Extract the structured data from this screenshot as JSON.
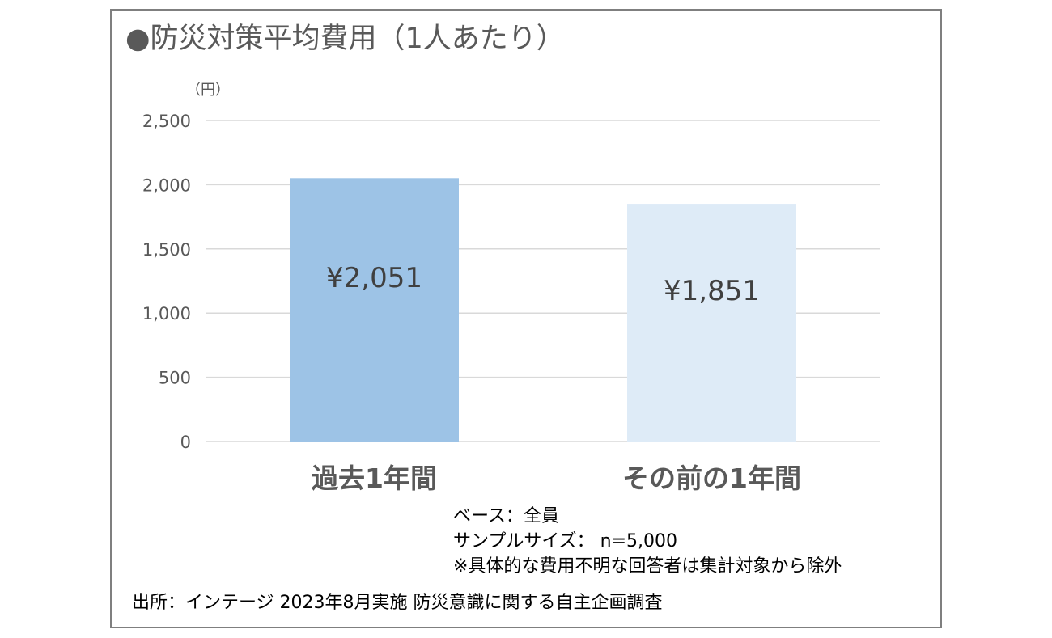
{
  "title": "●防災対策平均費用（1人あたり）",
  "unit_label": "（円）",
  "colors": {
    "bar1": "#9dc3e6",
    "bar2": "#deebf7",
    "grid": "#d9d9d9",
    "text": "#595959"
  },
  "notes": {
    "base": "ベース：全員",
    "sample": "サンプルサイズ：  n=5,000",
    "exclusion": "※具体的な費用不明な回答者は集計対象から除外",
    "source": "出所：インテージ 2023年8月実施 防災意識に関する自主企画調査"
  },
  "chart_data": {
    "type": "bar",
    "title": "●防災対策平均費用（1人あたり）",
    "ylabel": "（円）",
    "xlabel": "",
    "categories": [
      "過去1年間",
      "その前の1年間"
    ],
    "values": [
      2051,
      1851
    ],
    "data_labels": [
      "¥2,051",
      "¥1,851"
    ],
    "ylim": [
      0,
      2500
    ],
    "yticks": [
      0,
      500,
      1000,
      1500,
      2000,
      2500
    ],
    "ytick_labels": [
      "0",
      "500",
      "1,000",
      "1,500",
      "2,000",
      "2,500"
    ],
    "grid": true,
    "legend": "none"
  }
}
